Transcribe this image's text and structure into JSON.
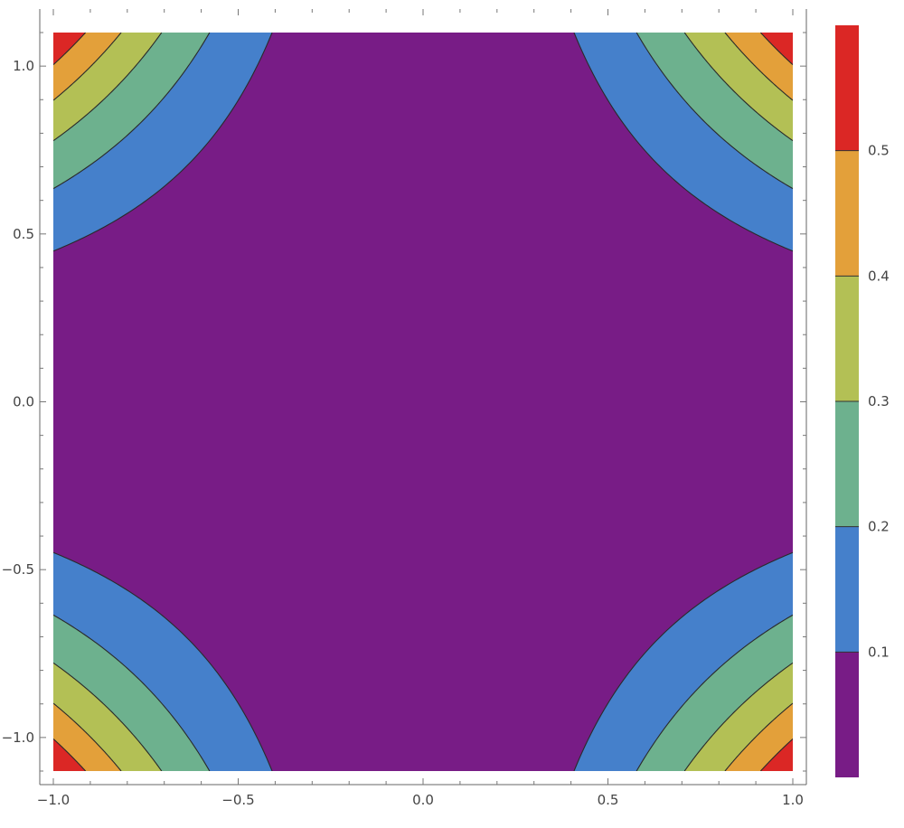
{
  "chart_data": {
    "type": "contour",
    "title": "",
    "xlabel": "",
    "ylabel": "",
    "xlim": [
      -1.0,
      1.0
    ],
    "ylim": [
      -1.1,
      1.1
    ],
    "x_ticks": [
      -1.0,
      -0.5,
      0.0,
      0.5,
      1.0
    ],
    "x_tick_labels": [
      "−1.0",
      "−0.5",
      "0.0",
      "0.5",
      "1.0"
    ],
    "y_ticks": [
      -1.0,
      -0.5,
      0.0,
      0.5,
      1.0
    ],
    "y_tick_labels": [
      "−1.0",
      "−0.5",
      "0.0",
      "0.5",
      "1.0"
    ],
    "contour_levels": [
      0.1,
      0.2,
      0.3,
      0.4,
      0.5
    ],
    "value_range": [
      0.0,
      0.6
    ],
    "colors": [
      "#781c86",
      "#4580cb",
      "#6db18e",
      "#b3c055",
      "#e3a03a",
      "#db2725"
    ],
    "contour_line_color": "#2a2a2a",
    "approx_function": "0.6 * x^2 * y^2 / (1.1^2)",
    "legend": {
      "type": "colorbar",
      "placement": "right",
      "ticks": [
        0.1,
        0.2,
        0.3,
        0.4,
        0.5
      ],
      "tick_labels": [
        "0.1",
        "0.2",
        "0.3",
        "0.4",
        "0.5"
      ]
    }
  }
}
